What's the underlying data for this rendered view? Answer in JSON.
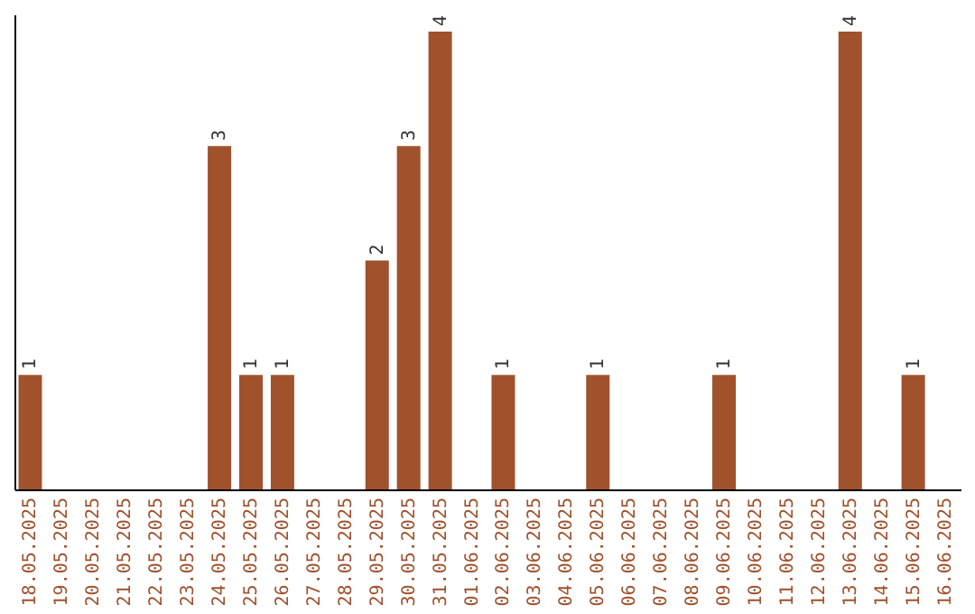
{
  "chart_data": {
    "type": "bar",
    "categories": [
      "18.05.2025",
      "19.05.2025",
      "20.05.2025",
      "21.05.2025",
      "22.05.2025",
      "23.05.2025",
      "24.05.2025",
      "25.05.2025",
      "26.05.2025",
      "27.05.2025",
      "28.05.2025",
      "29.05.2025",
      "30.05.2025",
      "31.05.2025",
      "01.06.2025",
      "02.06.2025",
      "03.06.2025",
      "04.06.2025",
      "05.06.2025",
      "06.06.2025",
      "07.06.2025",
      "08.06.2025",
      "09.06.2025",
      "10.06.2025",
      "11.06.2025",
      "12.06.2025",
      "13.06.2025",
      "14.06.2025",
      "15.06.2025",
      "16.06.2025"
    ],
    "values": [
      1,
      0,
      0,
      0,
      0,
      0,
      3,
      1,
      1,
      0,
      0,
      2,
      3,
      4,
      0,
      1,
      0,
      0,
      1,
      0,
      0,
      0,
      1,
      0,
      0,
      0,
      4,
      0,
      1,
      0
    ],
    "value_labels": [
      "1",
      null,
      null,
      null,
      null,
      null,
      "3",
      "1",
      "1",
      null,
      null,
      "2",
      "3",
      "4",
      null,
      "1",
      null,
      null,
      "1",
      null,
      null,
      null,
      "1",
      null,
      null,
      null,
      "4",
      null,
      "1",
      null
    ],
    "color": "#a0522d",
    "ylim": [
      0,
      4.15
    ],
    "tick_labels": "x",
    "grid": false
  }
}
